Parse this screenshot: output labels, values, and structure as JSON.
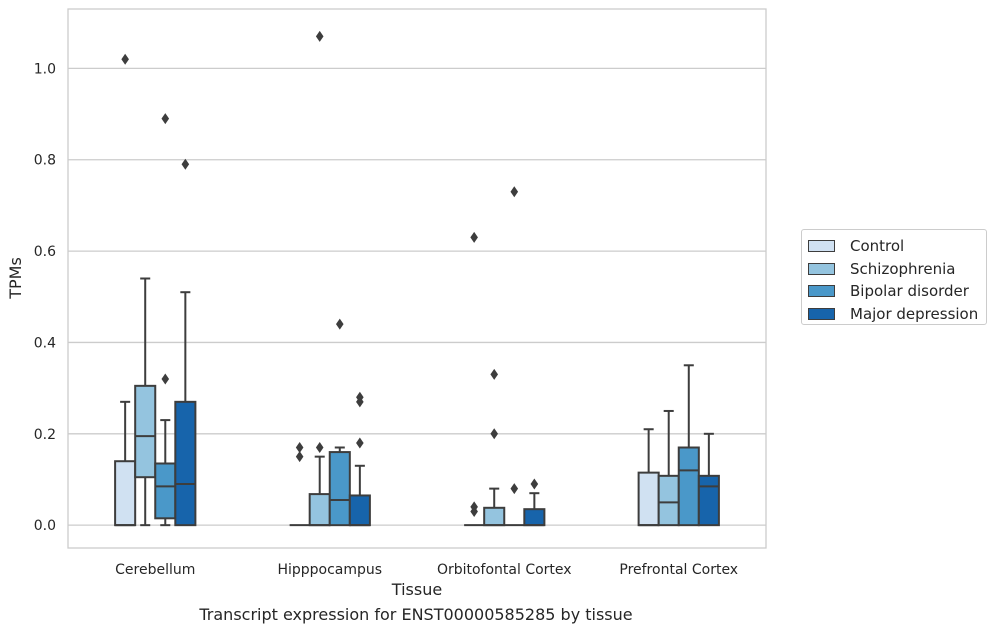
{
  "chart_data": {
    "type": "box",
    "xlabel": "Tissue",
    "ylabel": "TPMs",
    "ylim": [
      -0.05,
      1.13
    ],
    "yticks": [
      "0.0",
      "0.2",
      "0.4",
      "0.6",
      "0.8",
      "1.0"
    ],
    "grid": "horizontal",
    "legend_position": "center-right",
    "categories": [
      "Cerebellum",
      "Hipppocampus",
      "Orbitofontal Cortex",
      "Prefrontal Cortex"
    ],
    "series": [
      {
        "name": "Control",
        "color": "#d0e1f2",
        "boxes": [
          {
            "whislo": 0.0,
            "q1": 0.0,
            "med": 0.0,
            "q3": 0.14,
            "whishi": 0.27,
            "fliers": [
              1.02
            ]
          },
          {
            "whislo": 0.0,
            "q1": 0.0,
            "med": 0.0,
            "q3": 0.0,
            "whishi": 0.0,
            "fliers": [
              0.15,
              0.17
            ]
          },
          {
            "whislo": 0.0,
            "q1": 0.0,
            "med": 0.0,
            "q3": 0.0,
            "whishi": 0.0,
            "fliers": [
              0.03,
              0.04,
              0.63
            ]
          },
          {
            "whislo": 0.0,
            "q1": 0.0,
            "med": 0.0,
            "q3": 0.115,
            "whishi": 0.21,
            "fliers": []
          }
        ]
      },
      {
        "name": "Schizophrenia",
        "color": "#94c4df",
        "boxes": [
          {
            "whislo": 0.0,
            "q1": 0.105,
            "med": 0.195,
            "q3": 0.305,
            "whishi": 0.54,
            "fliers": []
          },
          {
            "whislo": 0.0,
            "q1": 0.0,
            "med": 0.0,
            "q3": 0.068,
            "whishi": 0.15,
            "fliers": [
              0.17,
              1.07
            ]
          },
          {
            "whislo": 0.0,
            "q1": 0.0,
            "med": 0.0,
            "q3": 0.038,
            "whishi": 0.08,
            "fliers": [
              0.2,
              0.33
            ]
          },
          {
            "whislo": 0.0,
            "q1": 0.0,
            "med": 0.05,
            "q3": 0.108,
            "whishi": 0.25,
            "fliers": []
          }
        ]
      },
      {
        "name": "Bipolar disorder",
        "color": "#4a98c9",
        "boxes": [
          {
            "whislo": 0.0,
            "q1": 0.015,
            "med": 0.085,
            "q3": 0.135,
            "whishi": 0.23,
            "fliers": [
              0.32,
              0.89
            ]
          },
          {
            "whislo": 0.0,
            "q1": 0.0,
            "med": 0.055,
            "q3": 0.16,
            "whishi": 0.17,
            "fliers": [
              0.44
            ]
          },
          {
            "whislo": 0.0,
            "q1": 0.0,
            "med": 0.0,
            "q3": 0.0,
            "whishi": 0.0,
            "fliers": [
              0.08,
              0.73
            ]
          },
          {
            "whislo": 0.0,
            "q1": 0.0,
            "med": 0.12,
            "q3": 0.17,
            "whishi": 0.35,
            "fliers": []
          }
        ]
      },
      {
        "name": "Major depression",
        "color": "#1764ab",
        "boxes": [
          {
            "whislo": 0.0,
            "q1": 0.0,
            "med": 0.09,
            "q3": 0.27,
            "whishi": 0.51,
            "fliers": [
              0.79
            ]
          },
          {
            "whislo": 0.0,
            "q1": 0.0,
            "med": 0.0,
            "q3": 0.065,
            "whishi": 0.13,
            "fliers": [
              0.18,
              0.27,
              0.28
            ]
          },
          {
            "whislo": 0.0,
            "q1": 0.0,
            "med": 0.0,
            "q3": 0.035,
            "whishi": 0.07,
            "fliers": [
              0.09
            ]
          },
          {
            "whislo": 0.0,
            "q1": 0.0,
            "med": 0.085,
            "q3": 0.108,
            "whishi": 0.2,
            "fliers": []
          }
        ]
      }
    ]
  },
  "caption": "Transcript expression for ENST00000585285 by tissue"
}
